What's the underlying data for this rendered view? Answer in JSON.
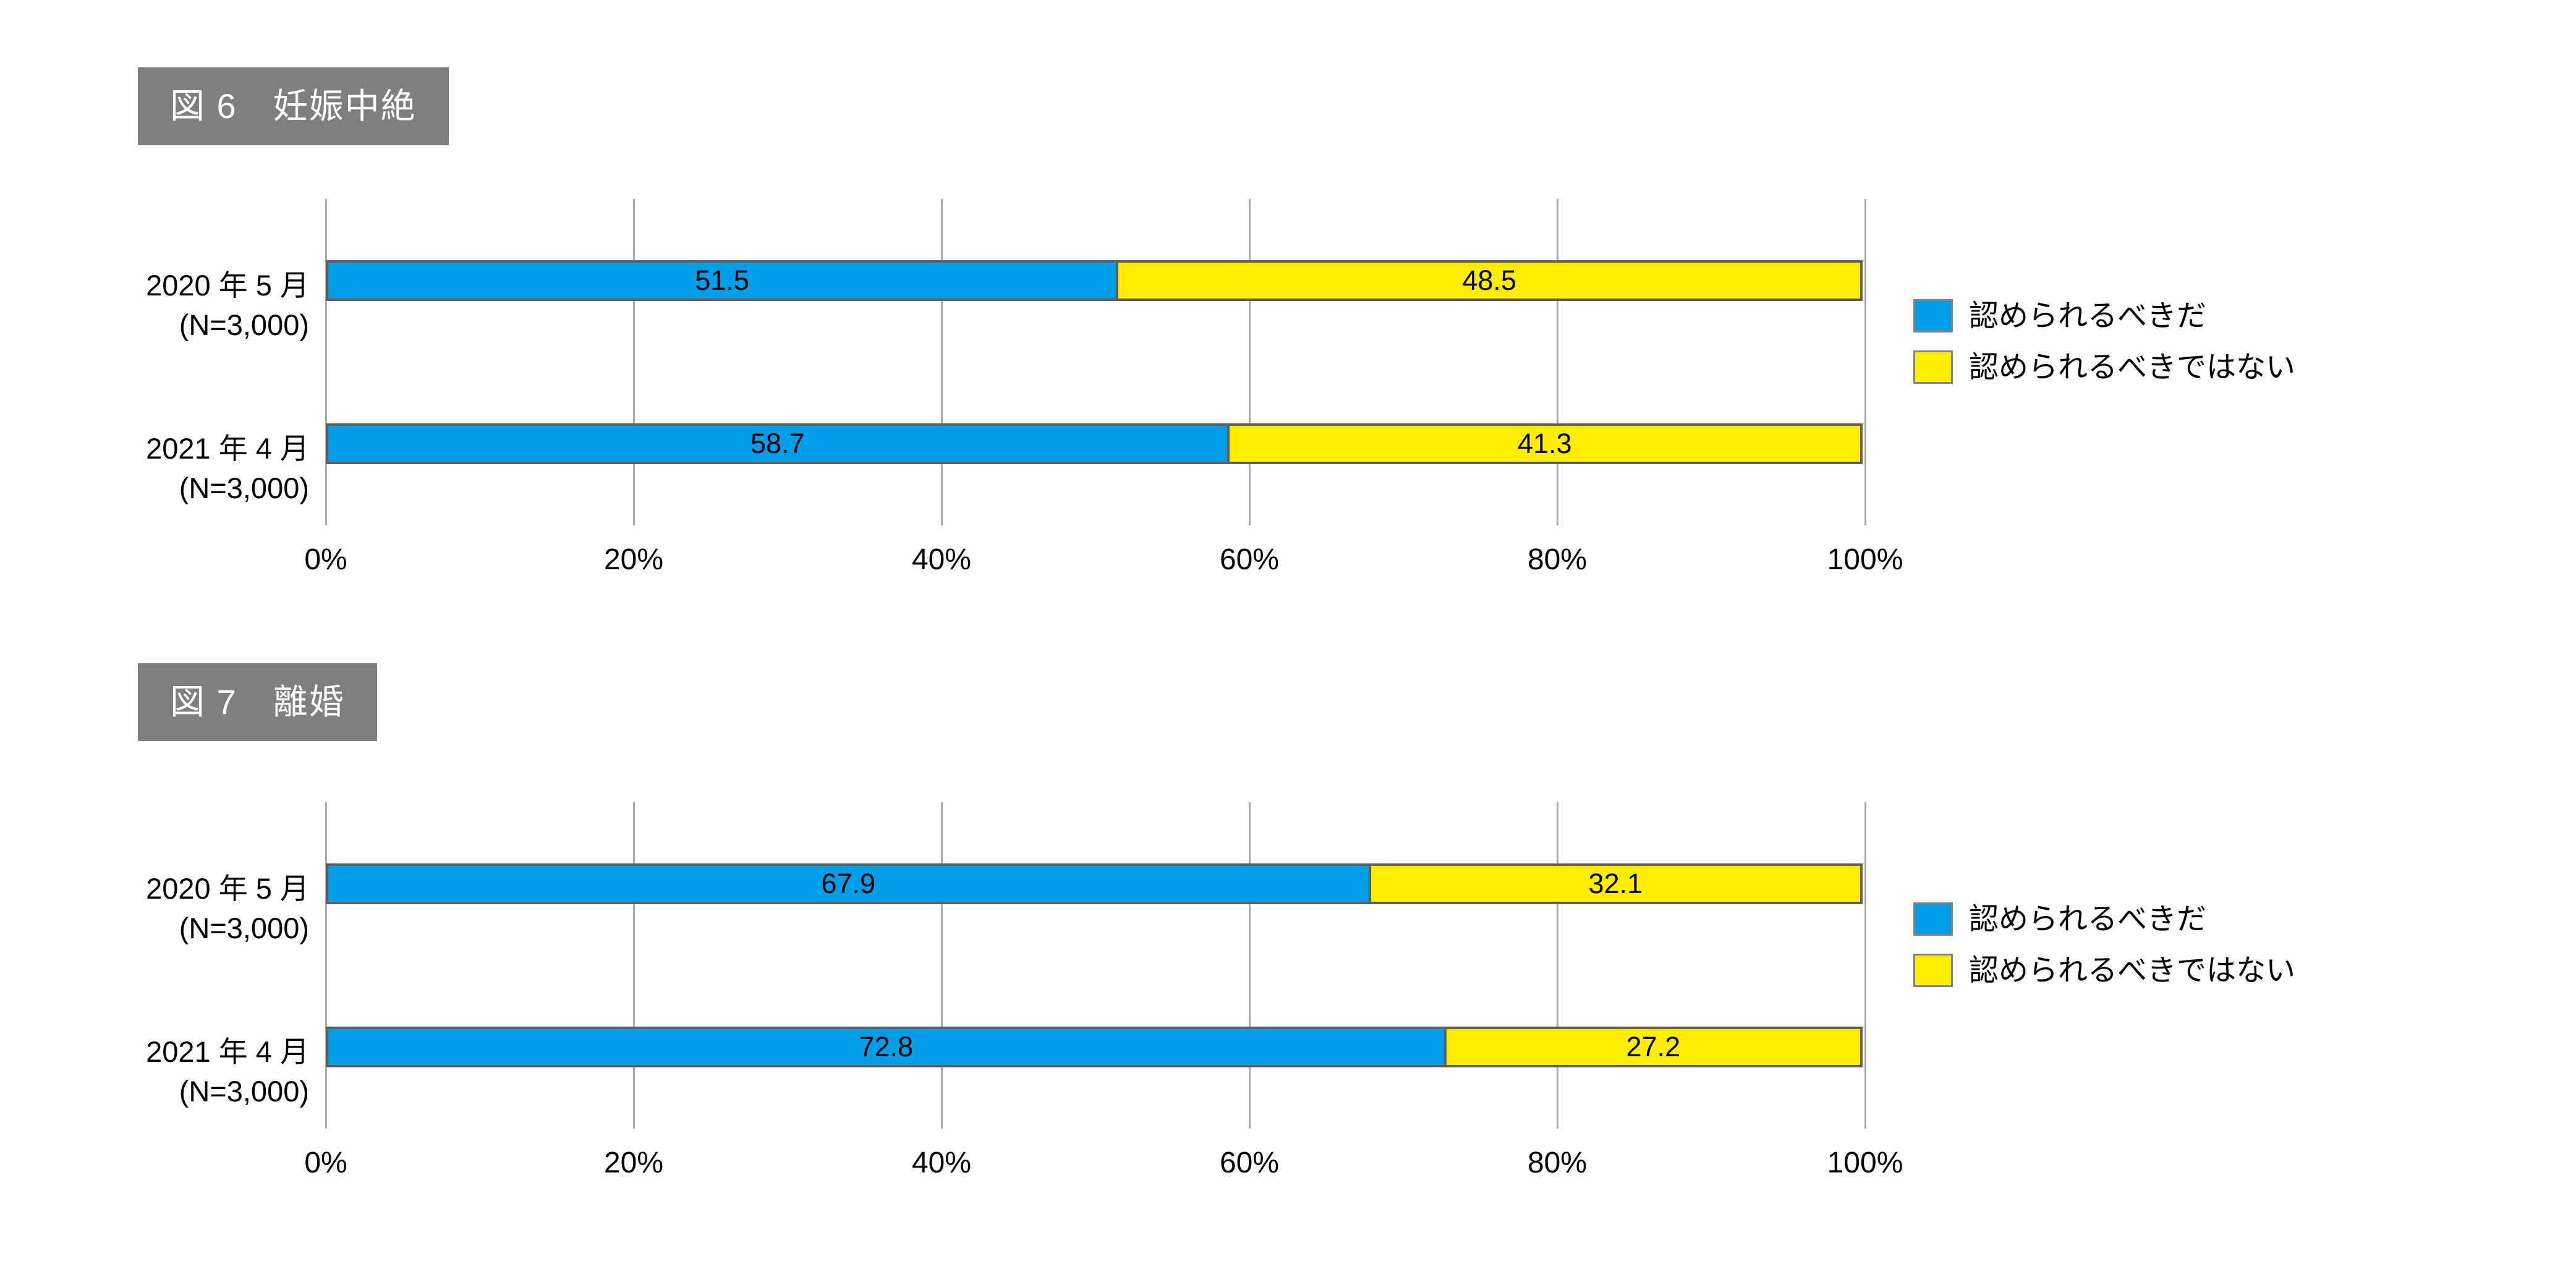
{
  "styles": {
    "background": "#ffffff",
    "bar_blue": "#009ee8",
    "bar_yellow": "#ffed00",
    "bar_border": "#5f5f5f",
    "gridline": "#a9a9a9",
    "title_box_bg": "#7f7f7f",
    "title_text": "#ffffff",
    "text": "#000000"
  },
  "chart_data": [
    {
      "type": "bar",
      "orientation": "horizontal",
      "stacked": true,
      "title": "図 6　妊娠中絶",
      "categories": [
        {
          "line1": "2020 年 5 月",
          "line2": "(N=3,000)"
        },
        {
          "line1": "2021 年 4 月",
          "line2": "(N=3,000)"
        }
      ],
      "series": [
        {
          "name": "認められるべきだ",
          "color": "#009ee8",
          "values": [
            51.5,
            58.7
          ]
        },
        {
          "name": "認められるべきではない",
          "color": "#ffed00",
          "values": [
            48.5,
            41.3
          ]
        }
      ],
      "x_ticks": [
        "0%",
        "20%",
        "40%",
        "60%",
        "80%",
        "100%"
      ],
      "xlim": [
        0,
        100
      ],
      "grid": true,
      "legend_position": "right"
    },
    {
      "type": "bar",
      "orientation": "horizontal",
      "stacked": true,
      "title": "図 7　離婚",
      "categories": [
        {
          "line1": "2020 年 5 月",
          "line2": "(N=3,000)"
        },
        {
          "line1": "2021 年 4 月",
          "line2": "(N=3,000)"
        }
      ],
      "series": [
        {
          "name": "認められるべきだ",
          "color": "#009ee8",
          "values": [
            67.9,
            72.8
          ]
        },
        {
          "name": "認められるべきではない",
          "color": "#ffed00",
          "values": [
            32.1,
            27.2
          ]
        }
      ],
      "x_ticks": [
        "0%",
        "20%",
        "40%",
        "60%",
        "80%",
        "100%"
      ],
      "xlim": [
        0,
        100
      ],
      "grid": true,
      "legend_position": "right"
    }
  ]
}
